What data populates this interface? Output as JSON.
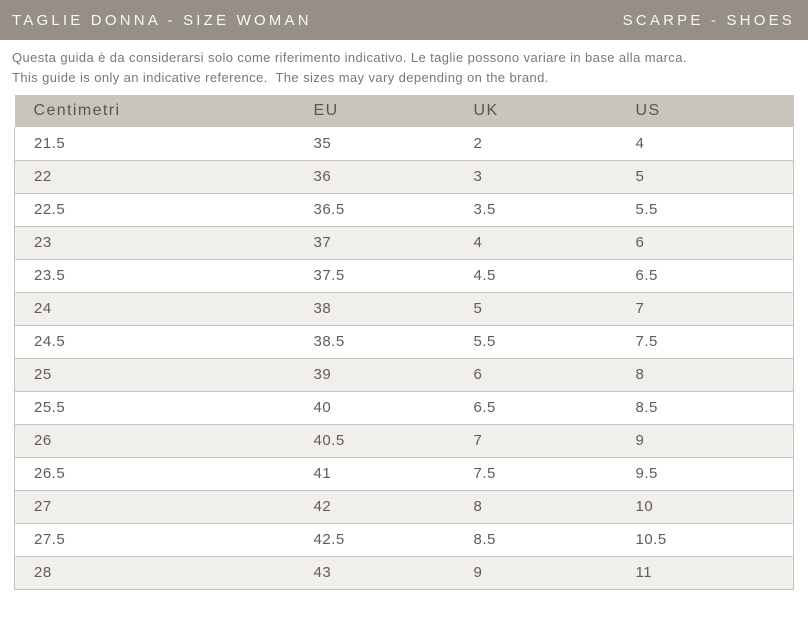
{
  "header": {
    "title_left": "TAGLIE DONNA - SIZE WOMAN",
    "title_right": "SCARPE - SHOES"
  },
  "note": {
    "line_it": "Questa guida è da considerarsi solo come riferimento indicativo. Le taglie possono variare in base alla marca.",
    "line_en": "This guide is only an indicative reference.  The sizes may vary depending on the brand."
  },
  "table": {
    "columns": [
      "Centimetri",
      "EU",
      "UK",
      "US"
    ],
    "rows": [
      [
        "21.5",
        "35",
        "2",
        "4"
      ],
      [
        "22",
        "36",
        "3",
        "5"
      ],
      [
        "22.5",
        "36.5",
        "3.5",
        "5.5"
      ],
      [
        "23",
        "37",
        "4",
        "6"
      ],
      [
        "23.5",
        "37.5",
        "4.5",
        "6.5"
      ],
      [
        "24",
        "38",
        "5",
        "7"
      ],
      [
        "24.5",
        "38.5",
        "5.5",
        "7.5"
      ],
      [
        "25",
        "39",
        "6",
        "8"
      ],
      [
        "25.5",
        "40",
        "6.5",
        "8.5"
      ],
      [
        "26",
        "40.5",
        "7",
        "9"
      ],
      [
        "26.5",
        "41",
        "7.5",
        "9.5"
      ],
      [
        "27",
        "42",
        "8",
        "10"
      ],
      [
        "27.5",
        "42.5",
        "8.5",
        "10.5"
      ],
      [
        "28",
        "43",
        "9",
        "11"
      ]
    ]
  },
  "colors": {
    "header_bar": "#968F85",
    "header_bar_text": "#F7F6F4",
    "table_header_bg": "#C9C5BE",
    "table_header_text": "#5C554C",
    "cell_text": "#645C52",
    "note_text": "#7D776E",
    "row_alt_bg": "#F0EFEC",
    "border": "#C6C3BD"
  }
}
